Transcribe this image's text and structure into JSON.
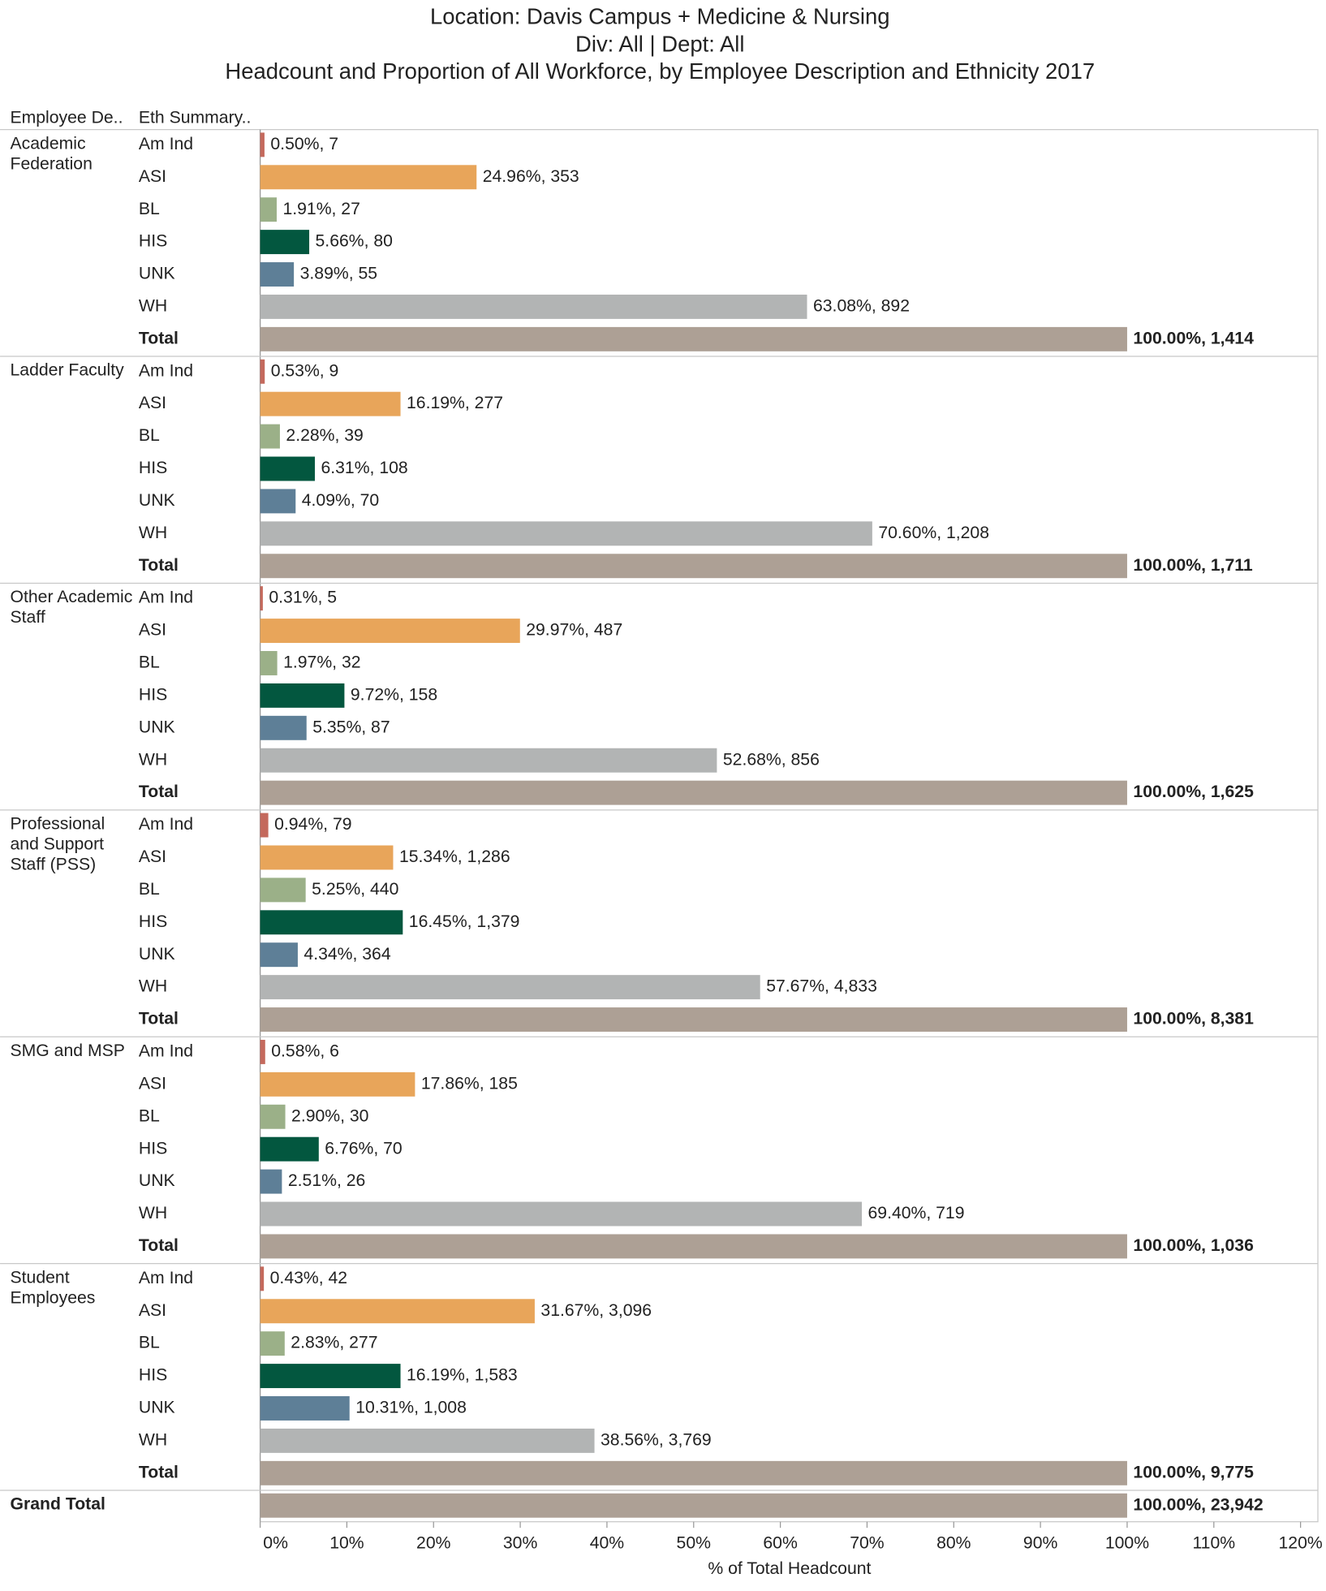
{
  "chart_data": {
    "type": "bar",
    "title": [
      "Location: Davis Campus + Medicine & Nursing",
      "Div: All  | Dept: All",
      "Headcount and Proportion of All Workforce, by Employee Description and Ethnicity 2017"
    ],
    "row_headers": [
      "Employee De..",
      "Eth Summary.."
    ],
    "xlabel": "% of Total Headcount",
    "xlim": [
      0,
      122
    ],
    "xticks": [
      {
        "value": 0,
        "label": "0%"
      },
      {
        "value": 10,
        "label": "10%"
      },
      {
        "value": 20,
        "label": "20%"
      },
      {
        "value": 30,
        "label": "30%"
      },
      {
        "value": 40,
        "label": "40%"
      },
      {
        "value": 50,
        "label": "50%"
      },
      {
        "value": 60,
        "label": "60%"
      },
      {
        "value": 70,
        "label": "70%"
      },
      {
        "value": 80,
        "label": "80%"
      },
      {
        "value": 90,
        "label": "90%"
      },
      {
        "value": 100,
        "label": "100%"
      },
      {
        "value": 110,
        "label": "110%"
      },
      {
        "value": 120,
        "label": "120%"
      }
    ],
    "colors": [
      "#c4695c",
      "#e8a55a",
      "#9bb088",
      "#03573f",
      "#5e7f97",
      "#b2b4b4",
      "#ada095"
    ],
    "groups": [
      {
        "name": "Academic Federation",
        "categories": [
          "Am Ind",
          "ASI",
          "BL",
          "HIS",
          "UNK",
          "WH",
          "Total"
        ],
        "values": [
          0.5,
          24.96,
          1.91,
          5.66,
          3.89,
          63.08,
          100
        ],
        "value_labels": [
          "0.50%, 7",
          "24.96%, 353",
          "1.91%, 27",
          "5.66%, 80",
          "3.89%, 55",
          "63.08%, 892",
          "100.00%, 1,414"
        ]
      },
      {
        "name": "Ladder Faculty",
        "categories": [
          "Am Ind",
          "ASI",
          "BL",
          "HIS",
          "UNK",
          "WH",
          "Total"
        ],
        "values": [
          0.53,
          16.19,
          2.28,
          6.31,
          4.09,
          70.6,
          100
        ],
        "value_labels": [
          "0.53%, 9",
          "16.19%, 277",
          "2.28%, 39",
          "6.31%, 108",
          "4.09%, 70",
          "70.60%, 1,208",
          "100.00%, 1,711"
        ]
      },
      {
        "name": "Other Academic Staff",
        "categories": [
          "Am Ind",
          "ASI",
          "BL",
          "HIS",
          "UNK",
          "WH",
          "Total"
        ],
        "values": [
          0.31,
          29.97,
          1.97,
          9.72,
          5.35,
          52.68,
          100
        ],
        "value_labels": [
          "0.31%, 5",
          "29.97%, 487",
          "1.97%, 32",
          "9.72%, 158",
          "5.35%, 87",
          "52.68%, 856",
          "100.00%, 1,625"
        ]
      },
      {
        "name": "Professional and Support Staff (PSS)",
        "categories": [
          "Am Ind",
          "ASI",
          "BL",
          "HIS",
          "UNK",
          "WH",
          "Total"
        ],
        "values": [
          0.94,
          15.34,
          5.25,
          16.45,
          4.34,
          57.67,
          100
        ],
        "value_labels": [
          "0.94%, 79",
          "15.34%, 1,286",
          "5.25%, 440",
          "16.45%, 1,379",
          "4.34%, 364",
          "57.67%, 4,833",
          "100.00%, 8,381"
        ]
      },
      {
        "name": "SMG and MSP",
        "categories": [
          "Am Ind",
          "ASI",
          "BL",
          "HIS",
          "UNK",
          "WH",
          "Total"
        ],
        "values": [
          0.58,
          17.86,
          2.9,
          6.76,
          2.51,
          69.4,
          100
        ],
        "value_labels": [
          "0.58%, 6",
          "17.86%, 185",
          "2.90%, 30",
          "6.76%, 70",
          "2.51%, 26",
          "69.40%, 719",
          "100.00%, 1,036"
        ]
      },
      {
        "name": "Student Employees",
        "categories": [
          "Am Ind",
          "ASI",
          "BL",
          "HIS",
          "UNK",
          "WH",
          "Total"
        ],
        "values": [
          0.43,
          31.67,
          2.83,
          16.19,
          10.31,
          38.56,
          100
        ],
        "value_labels": [
          "0.43%, 42",
          "31.67%, 3,096",
          "2.83%, 277",
          "16.19%, 1,583",
          "10.31%, 1,008",
          "38.56%, 3,769",
          "100.00%, 9,775"
        ]
      },
      {
        "name": "Grand Total",
        "categories": [
          null
        ],
        "values": [
          100
        ],
        "value_labels": [
          "100.00%, 23,942"
        ],
        "color": "#ada095"
      }
    ]
  }
}
